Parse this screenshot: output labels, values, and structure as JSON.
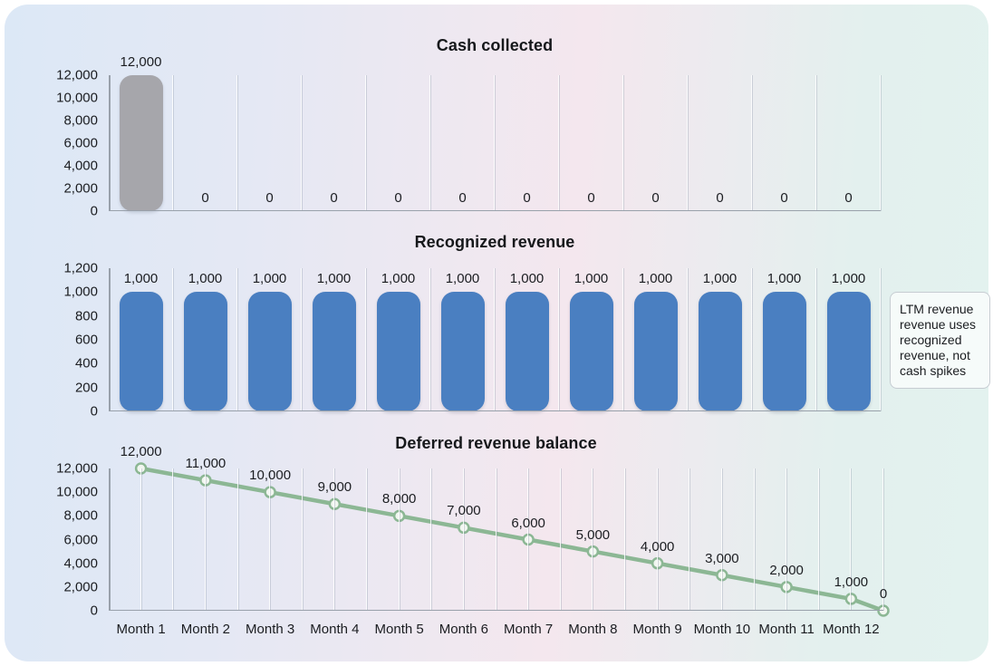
{
  "annotation": {
    "text": "LTM revenue revenue uses recognized revenue, not cash spikes"
  },
  "colors": {
    "gray_bar": "#a6a6ab",
    "blue_bar": "#4a7fc1",
    "green_line": "#8cb794",
    "marker_fill": "#f1f6f0",
    "axis": "#99a1ab",
    "text": "#1b1d21"
  },
  "chart_data": [
    {
      "type": "bar",
      "title": "Cash collected",
      "categories": [
        "Month 1",
        "Month 2",
        "Month 3",
        "Month 4",
        "Month 5",
        "Month 6",
        "Month 7",
        "Month 8",
        "Month 9",
        "Month 10",
        "Month 11",
        "Month 12"
      ],
      "x_labels_visible": false,
      "values": [
        12000,
        0,
        0,
        0,
        0,
        0,
        0,
        0,
        0,
        0,
        0,
        0
      ],
      "value_labels": [
        "12,000",
        "0",
        "0",
        "0",
        "0",
        "0",
        "0",
        "0",
        "0",
        "0",
        "0",
        "0"
      ],
      "y_ticks": [
        "12,000",
        "10,000",
        "8,000",
        "6,000",
        "4,000",
        "2,000",
        "0"
      ],
      "ylim": [
        0,
        12000
      ],
      "grid": "vertical",
      "bar_color": "#a6a6ab"
    },
    {
      "type": "bar",
      "title": "Recognized revenue",
      "categories": [
        "Month 1",
        "Month 2",
        "Month 3",
        "Month 4",
        "Month 5",
        "Month 6",
        "Month 7",
        "Month 8",
        "Month 9",
        "Month 10",
        "Month 11",
        "Month 12"
      ],
      "x_labels_visible": false,
      "values": [
        1000,
        1000,
        1000,
        1000,
        1000,
        1000,
        1000,
        1000,
        1000,
        1000,
        1000,
        1000
      ],
      "value_labels": [
        "1,000",
        "1,000",
        "1,000",
        "1,000",
        "1,000",
        "1,000",
        "1,000",
        "1,000",
        "1,000",
        "1,000",
        "1,000",
        "1,000"
      ],
      "y_ticks": [
        "1,200",
        "1,000",
        "800",
        "600",
        "400",
        "200",
        "0"
      ],
      "ylim": [
        0,
        1200
      ],
      "grid": "vertical",
      "bar_color": "#4a7fc1"
    },
    {
      "type": "line",
      "title": "Deferred revenue balance",
      "categories": [
        "Month 1",
        "Month 2",
        "Month 3",
        "Month 4",
        "Month 5",
        "Month 6",
        "Month 7",
        "Month 8",
        "Month 9",
        "Month 10",
        "Month 11",
        "Month 12"
      ],
      "x_labels_visible": true,
      "values": [
        12000,
        11000,
        10000,
        9000,
        8000,
        7000,
        6000,
        5000,
        4000,
        3000,
        2000,
        1000,
        0
      ],
      "value_labels": [
        "12,000",
        "11,000",
        "10,000",
        "9,000",
        "8,000",
        "7,000",
        "6,000",
        "5,000",
        "4,000",
        "3,000",
        "2,000",
        "1,000",
        "0"
      ],
      "y_ticks": [
        "12,000",
        "10,000",
        "8,000",
        "6,000",
        "4,000",
        "2,000",
        "0"
      ],
      "ylim": [
        0,
        12000
      ],
      "grid": "vertical-half-step",
      "line_color": "#8cb794",
      "marker_fill": "#f1f6f0"
    }
  ]
}
